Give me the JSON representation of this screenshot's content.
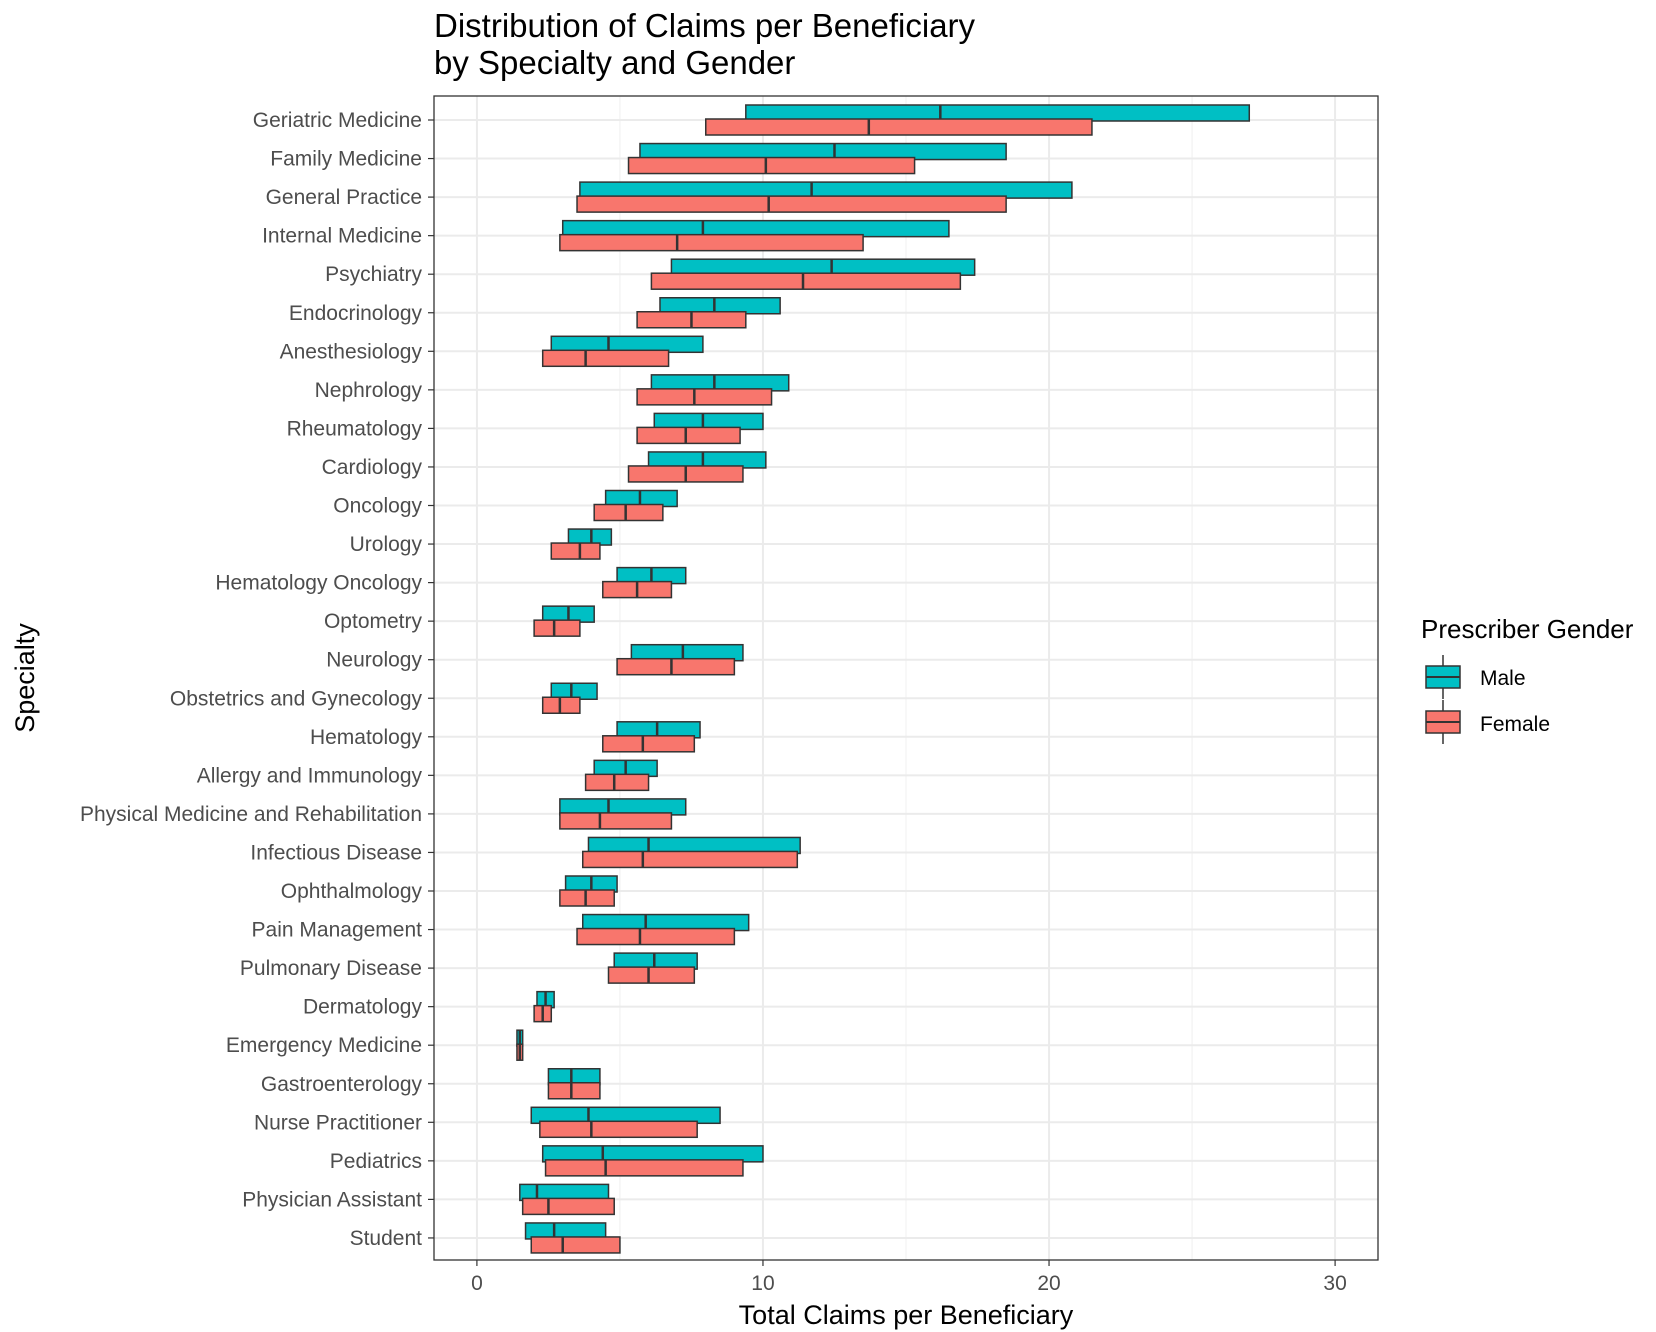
{
  "chart_data": {
    "type": "boxplot",
    "title": "Distribution of Claims per Beneficiary",
    "subtitle": "by Specialty and Gender",
    "xlabel": "Total Claims per Beneficiary",
    "ylabel": "Specialty",
    "xlim": [
      -1.5,
      31.5
    ],
    "x_ticks": [
      0,
      10,
      20,
      30
    ],
    "x_tick_labels": [
      "0",
      "10",
      "20",
      "30"
    ],
    "grid": true,
    "legend": {
      "title": "Prescriber Gender",
      "position": "right",
      "entries": [
        {
          "label": "Male",
          "color": "#00BFC4"
        },
        {
          "label": "Female",
          "color": "#F8766D"
        }
      ]
    },
    "categories": [
      "Geriatric Medicine",
      "Family Medicine",
      "General Practice",
      "Internal Medicine",
      "Psychiatry",
      "Endocrinology",
      "Anesthesiology",
      "Nephrology",
      "Rheumatology",
      "Cardiology",
      "Oncology",
      "Urology",
      "Hematology Oncology",
      "Optometry",
      "Neurology",
      "Obstetrics and Gynecology",
      "Hematology",
      "Allergy and Immunology",
      "Physical Medicine and Rehabilitation",
      "Infectious Disease",
      "Ophthalmology",
      "Pain Management",
      "Pulmonary Disease",
      "Dermatology",
      "Emergency Medicine",
      "Gastroenterology",
      "Nurse Practitioner",
      "Pediatrics",
      "Physician Assistant",
      "Student"
    ],
    "series": [
      {
        "name": "Male",
        "color": "#00BFC4",
        "q1": [
          9.4,
          5.7,
          3.6,
          3.0,
          6.8,
          6.4,
          2.6,
          6.1,
          6.2,
          6.0,
          4.5,
          3.2,
          4.9,
          2.3,
          5.4,
          2.6,
          4.9,
          4.1,
          2.9,
          3.9,
          3.1,
          3.7,
          4.8,
          2.1,
          1.4,
          2.5,
          1.9,
          2.3,
          1.5,
          1.7
        ],
        "median": [
          16.2,
          12.5,
          11.7,
          7.9,
          12.4,
          8.3,
          4.6,
          8.3,
          7.9,
          7.9,
          5.7,
          4.0,
          6.1,
          3.2,
          7.2,
          3.3,
          6.3,
          5.2,
          4.6,
          6.0,
          4.0,
          5.9,
          6.2,
          2.4,
          1.5,
          3.3,
          3.9,
          4.4,
          2.1,
          2.7
        ],
        "q3": [
          27.0,
          18.5,
          20.8,
          16.5,
          17.4,
          10.6,
          7.9,
          10.9,
          10.0,
          10.1,
          7.0,
          4.7,
          7.3,
          4.1,
          9.3,
          4.2,
          7.8,
          6.3,
          7.3,
          11.3,
          4.9,
          9.5,
          7.7,
          2.7,
          1.6,
          4.3,
          8.5,
          10.0,
          4.6,
          4.5
        ]
      },
      {
        "name": "Female",
        "color": "#F8766D",
        "q1": [
          8.0,
          5.3,
          3.5,
          2.9,
          6.1,
          5.6,
          2.3,
          5.6,
          5.6,
          5.3,
          4.1,
          2.6,
          4.4,
          2.0,
          4.9,
          2.3,
          4.4,
          3.8,
          2.9,
          3.7,
          2.9,
          3.5,
          4.6,
          2.0,
          1.4,
          2.5,
          2.2,
          2.4,
          1.6,
          1.9
        ],
        "median": [
          13.7,
          10.1,
          10.2,
          7.0,
          11.4,
          7.5,
          3.8,
          7.6,
          7.3,
          7.3,
          5.2,
          3.6,
          5.6,
          2.7,
          6.8,
          2.9,
          5.8,
          4.8,
          4.3,
          5.8,
          3.8,
          5.7,
          6.0,
          2.3,
          1.5,
          3.3,
          4.0,
          4.5,
          2.5,
          3.0
        ],
        "q3": [
          21.5,
          15.3,
          18.5,
          13.5,
          16.9,
          9.4,
          6.7,
          10.3,
          9.2,
          9.3,
          6.5,
          4.3,
          6.8,
          3.6,
          9.0,
          3.6,
          7.6,
          6.0,
          6.8,
          11.2,
          4.8,
          9.0,
          7.6,
          2.6,
          1.6,
          4.3,
          7.7,
          9.3,
          4.8,
          5.0
        ]
      }
    ]
  }
}
